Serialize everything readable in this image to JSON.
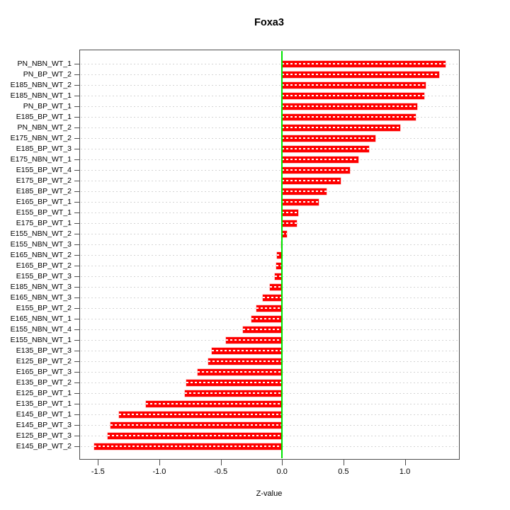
{
  "chart_data": {
    "type": "bar",
    "orientation": "horizontal",
    "title": "Foxa3",
    "xlabel": "Z-value",
    "categories": [
      "PN_NBN_WT_1",
      "PN_BP_WT_2",
      "E185_NBN_WT_2",
      "E185_NBN_WT_1",
      "PN_BP_WT_1",
      "E185_BP_WT_1",
      "PN_NBN_WT_2",
      "E175_NBN_WT_2",
      "E185_BP_WT_3",
      "E175_NBN_WT_1",
      "E155_BP_WT_4",
      "E175_BP_WT_2",
      "E185_BP_WT_2",
      "E165_BP_WT_1",
      "E155_BP_WT_1",
      "E175_BP_WT_1",
      "E155_NBN_WT_2",
      "E155_NBN_WT_3",
      "E165_NBN_WT_2",
      "E165_BP_WT_2",
      "E155_BP_WT_3",
      "E185_NBN_WT_3",
      "E165_NBN_WT_3",
      "E155_BP_WT_2",
      "E165_NBN_WT_1",
      "E155_NBN_WT_4",
      "E155_NBN_WT_1",
      "E135_BP_WT_3",
      "E125_BP_WT_2",
      "E165_BP_WT_3",
      "E135_BP_WT_2",
      "E125_BP_WT_1",
      "E135_BP_WT_1",
      "E145_BP_WT_1",
      "E145_BP_WT_3",
      "E125_BP_WT_3",
      "E145_BP_WT_2"
    ],
    "values": [
      1.33,
      1.28,
      1.17,
      1.16,
      1.1,
      1.09,
      0.96,
      0.76,
      0.71,
      0.62,
      0.55,
      0.48,
      0.36,
      0.3,
      0.13,
      0.12,
      0.04,
      -0.01,
      -0.04,
      -0.05,
      -0.06,
      -0.1,
      -0.16,
      -0.21,
      -0.25,
      -0.32,
      -0.46,
      -0.57,
      -0.6,
      -0.69,
      -0.78,
      -0.79,
      -1.11,
      -1.33,
      -1.4,
      -1.42,
      -1.53
    ],
    "xlim": [
      -1.646,
      1.441
    ],
    "xticks": [
      -1.5,
      -1.0,
      -0.5,
      0.0,
      0.5,
      1.0
    ],
    "xtick_labels": [
      "-1.5",
      "-1.0",
      "-0.5",
      "0.0",
      "0.5",
      "1.0"
    ],
    "grid": "dotted-horizontal-per-row",
    "legend": "none",
    "colors": {
      "bar": "#fe0000",
      "zero_line": "#00e400",
      "gridline": "#d4d4d4",
      "axis": "#4d4d4d",
      "background": "#ffffff"
    }
  }
}
